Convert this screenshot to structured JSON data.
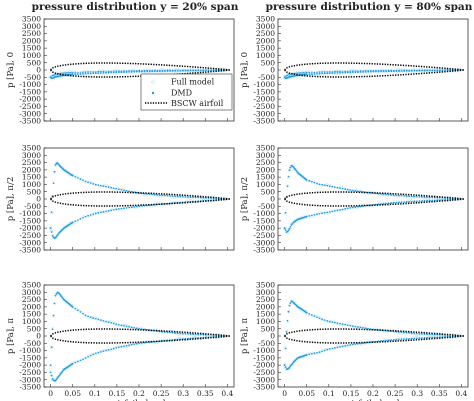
{
  "chart_data": {
    "type": "scatter",
    "grid": false,
    "colors": {
      "full_model": "#bfe3f6",
      "dmd": "#1a9be0",
      "bscw_airfoil": "#000000",
      "frame": "#333333"
    },
    "columns": [
      {
        "title": "pressure distribution y = 20% span"
      },
      {
        "title": "pressure distribution y = 80% span"
      }
    ],
    "rows": [
      {
        "ylabel": "p [Pa], 0",
        "phase": "0"
      },
      {
        "ylabel": "p [Pa], π/2",
        "phase": "π/2"
      },
      {
        "ylabel": "p [Pa], π",
        "phase": "π"
      }
    ],
    "xlabel": "airfoil chord",
    "xlim": [
      -0.015,
      0.415
    ],
    "ylim": [
      -3500,
      3500
    ],
    "xticks": [
      "0",
      "0.05",
      "0.1",
      "0.15",
      "0.2",
      "0.25",
      "0.3",
      "0.35",
      "0.4"
    ],
    "yticks": [
      "3500",
      "3000",
      "2500",
      "2000",
      "1500",
      "1000",
      "500",
      "0",
      "-500",
      "-1000",
      "-1500",
      "-2000",
      "-2500",
      "-3000",
      "-3500"
    ],
    "legend": {
      "placement": "lower-right",
      "entries": [
        "Full model",
        "DMD",
        "BSCW airfoil"
      ]
    },
    "airfoil": {
      "chord": 0.4064,
      "half_thickness_pa": 480
    },
    "panels": [
      {
        "row": 0,
        "col": 0,
        "upper": [
          [
            0,
            -500
          ],
          [
            0.003,
            -420
          ],
          [
            0.01,
            -320
          ],
          [
            0.025,
            -240
          ],
          [
            0.05,
            -180
          ],
          [
            0.1,
            -120
          ],
          [
            0.15,
            -80
          ],
          [
            0.2,
            -50
          ],
          [
            0.25,
            -30
          ],
          [
            0.3,
            -20
          ],
          [
            0.35,
            -10
          ],
          [
            0.4,
            0
          ]
        ],
        "lower": [
          [
            0,
            -500
          ],
          [
            0.003,
            -580
          ],
          [
            0.01,
            -480
          ],
          [
            0.025,
            -380
          ],
          [
            0.05,
            -300
          ],
          [
            0.1,
            -220
          ],
          [
            0.15,
            -160
          ],
          [
            0.2,
            -110
          ],
          [
            0.25,
            -80
          ],
          [
            0.3,
            -50
          ],
          [
            0.35,
            -30
          ],
          [
            0.4,
            0
          ]
        ]
      },
      {
        "row": 0,
        "col": 1,
        "upper": [
          [
            0,
            -500
          ],
          [
            0.003,
            -420
          ],
          [
            0.01,
            -320
          ],
          [
            0.025,
            -240
          ],
          [
            0.05,
            -180
          ],
          [
            0.1,
            -120
          ],
          [
            0.15,
            -80
          ],
          [
            0.2,
            -50
          ],
          [
            0.25,
            -30
          ],
          [
            0.3,
            -20
          ],
          [
            0.35,
            -10
          ],
          [
            0.4,
            0
          ]
        ],
        "lower": [
          [
            0,
            -500
          ],
          [
            0.003,
            -580
          ],
          [
            0.01,
            -480
          ],
          [
            0.025,
            -380
          ],
          [
            0.05,
            -300
          ],
          [
            0.1,
            -220
          ],
          [
            0.15,
            -160
          ],
          [
            0.2,
            -110
          ],
          [
            0.25,
            -80
          ],
          [
            0.3,
            -50
          ],
          [
            0.35,
            -30
          ],
          [
            0.4,
            0
          ]
        ]
      },
      {
        "row": 1,
        "col": 0,
        "upper": [
          [
            0,
            -2000
          ],
          [
            0.005,
            500
          ],
          [
            0.01,
            2300
          ],
          [
            0.015,
            2500
          ],
          [
            0.02,
            2300
          ],
          [
            0.03,
            2000
          ],
          [
            0.05,
            1600
          ],
          [
            0.08,
            1200
          ],
          [
            0.1,
            1000
          ],
          [
            0.15,
            700
          ],
          [
            0.2,
            400
          ],
          [
            0.25,
            250
          ],
          [
            0.3,
            150
          ],
          [
            0.35,
            80
          ],
          [
            0.4,
            0
          ]
        ],
        "lower": [
          [
            0,
            -2000
          ],
          [
            0.005,
            -2600
          ],
          [
            0.01,
            -2700
          ],
          [
            0.015,
            -2500
          ],
          [
            0.02,
            -2300
          ],
          [
            0.03,
            -2000
          ],
          [
            0.05,
            -1600
          ],
          [
            0.08,
            -1200
          ],
          [
            0.1,
            -1000
          ],
          [
            0.15,
            -700
          ],
          [
            0.2,
            -500
          ],
          [
            0.25,
            -350
          ],
          [
            0.3,
            -220
          ],
          [
            0.35,
            -120
          ],
          [
            0.4,
            0
          ]
        ]
      },
      {
        "row": 1,
        "col": 1,
        "upper": [
          [
            0,
            -2000
          ],
          [
            0.005,
            400
          ],
          [
            0.01,
            1900
          ],
          [
            0.015,
            2300
          ],
          [
            0.02,
            2200
          ],
          [
            0.03,
            1800
          ],
          [
            0.05,
            1300
          ],
          [
            0.08,
            1000
          ],
          [
            0.1,
            900
          ],
          [
            0.15,
            600
          ],
          [
            0.2,
            400
          ],
          [
            0.25,
            250
          ],
          [
            0.3,
            150
          ],
          [
            0.35,
            80
          ],
          [
            0.4,
            0
          ]
        ],
        "lower": [
          [
            0,
            -2000
          ],
          [
            0.005,
            -2300
          ],
          [
            0.01,
            -2100
          ],
          [
            0.015,
            -1800
          ],
          [
            0.02,
            -1600
          ],
          [
            0.03,
            -1400
          ],
          [
            0.05,
            -1200
          ],
          [
            0.08,
            -1000
          ],
          [
            0.1,
            -900
          ],
          [
            0.15,
            -600
          ],
          [
            0.2,
            -400
          ],
          [
            0.25,
            -250
          ],
          [
            0.3,
            -150
          ],
          [
            0.35,
            -80
          ],
          [
            0.4,
            0
          ]
        ]
      },
      {
        "row": 2,
        "col": 0,
        "upper": [
          [
            0,
            -2000
          ],
          [
            0.005,
            800
          ],
          [
            0.01,
            2700
          ],
          [
            0.015,
            3000
          ],
          [
            0.02,
            2900
          ],
          [
            0.03,
            2500
          ],
          [
            0.05,
            2000
          ],
          [
            0.08,
            1400
          ],
          [
            0.1,
            1200
          ],
          [
            0.15,
            800
          ],
          [
            0.2,
            500
          ],
          [
            0.25,
            300
          ],
          [
            0.3,
            150
          ],
          [
            0.35,
            80
          ],
          [
            0.4,
            0
          ]
        ],
        "lower": [
          [
            0,
            -2500
          ],
          [
            0.005,
            -3000
          ],
          [
            0.01,
            -3100
          ],
          [
            0.015,
            -2900
          ],
          [
            0.02,
            -2700
          ],
          [
            0.03,
            -2300
          ],
          [
            0.05,
            -1900
          ],
          [
            0.08,
            -1500
          ],
          [
            0.1,
            -1200
          ],
          [
            0.15,
            -800
          ],
          [
            0.2,
            -500
          ],
          [
            0.25,
            -350
          ],
          [
            0.3,
            -200
          ],
          [
            0.35,
            -100
          ],
          [
            0.4,
            0
          ]
        ]
      },
      {
        "row": 2,
        "col": 1,
        "upper": [
          [
            0,
            -2000
          ],
          [
            0.005,
            600
          ],
          [
            0.01,
            2000
          ],
          [
            0.015,
            2400
          ],
          [
            0.02,
            2300
          ],
          [
            0.03,
            2000
          ],
          [
            0.05,
            1600
          ],
          [
            0.08,
            1200
          ],
          [
            0.1,
            1000
          ],
          [
            0.15,
            700
          ],
          [
            0.2,
            450
          ],
          [
            0.25,
            300
          ],
          [
            0.3,
            150
          ],
          [
            0.35,
            80
          ],
          [
            0.4,
            0
          ]
        ],
        "lower": [
          [
            0,
            -2000
          ],
          [
            0.005,
            -2300
          ],
          [
            0.01,
            -2200
          ],
          [
            0.015,
            -2000
          ],
          [
            0.02,
            -1800
          ],
          [
            0.03,
            -1500
          ],
          [
            0.05,
            -1300
          ],
          [
            0.08,
            -1100
          ],
          [
            0.1,
            -900
          ],
          [
            0.15,
            -600
          ],
          [
            0.2,
            -400
          ],
          [
            0.25,
            -250
          ],
          [
            0.3,
            -150
          ],
          [
            0.35,
            -80
          ],
          [
            0.4,
            0
          ]
        ]
      }
    ]
  }
}
